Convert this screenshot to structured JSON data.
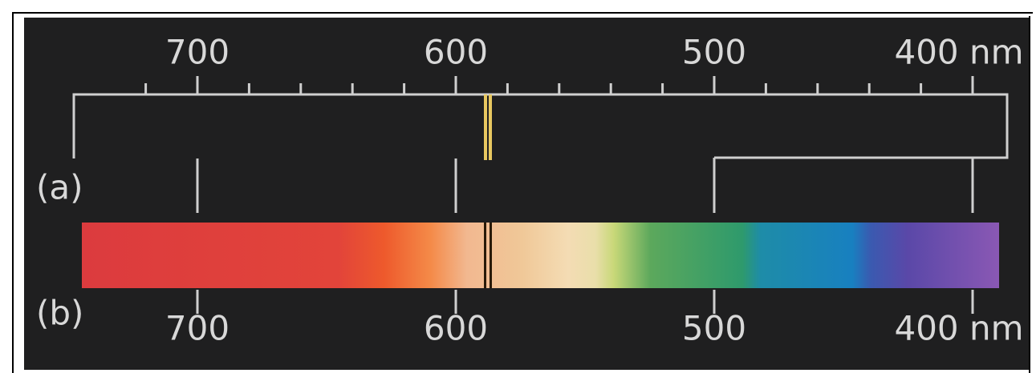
{
  "top_scale": {
    "labels": [
      "700",
      "600",
      "500",
      "400 nm"
    ]
  },
  "bottom_scale": {
    "labels": [
      "700",
      "600",
      "500",
      "400 nm"
    ]
  },
  "panel_a": {
    "label": "(a)"
  },
  "panel_b": {
    "label": "(b)"
  }
}
